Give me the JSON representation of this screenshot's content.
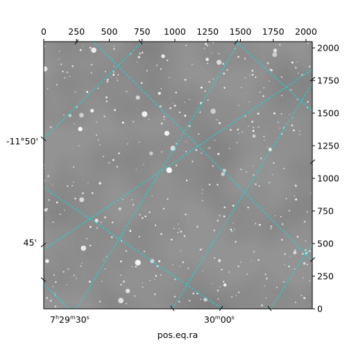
{
  "chart_data": {
    "type": "image",
    "description_of_content": "",
    "colormap": "gray",
    "pixel_axes": {
      "x": {
        "range": [
          0,
          2048
        ],
        "ticks": [
          0,
          250,
          500,
          750,
          1000,
          1250,
          1500,
          1750,
          2000
        ],
        "position": "top"
      },
      "y": {
        "range": [
          0,
          2048
        ],
        "ticks": [
          0,
          250,
          500,
          750,
          1000,
          1250,
          1500,
          1750,
          2000
        ],
        "position": "right"
      }
    },
    "world_axes": {
      "xlabel": "pos.eq.ra",
      "x_ticks": [
        {
          "label": "7h29m30s",
          "hours": "7",
          "minutes": "29",
          "seconds": "30"
        },
        {
          "label": "30m00s",
          "minutes": "30",
          "seconds": "00"
        }
      ],
      "y_ticks": [
        {
          "label": "-11°50'"
        },
        {
          "label": "45'"
        }
      ]
    },
    "grid": true,
    "grid_color": "#00e5e5",
    "frame_color": "#000000"
  }
}
